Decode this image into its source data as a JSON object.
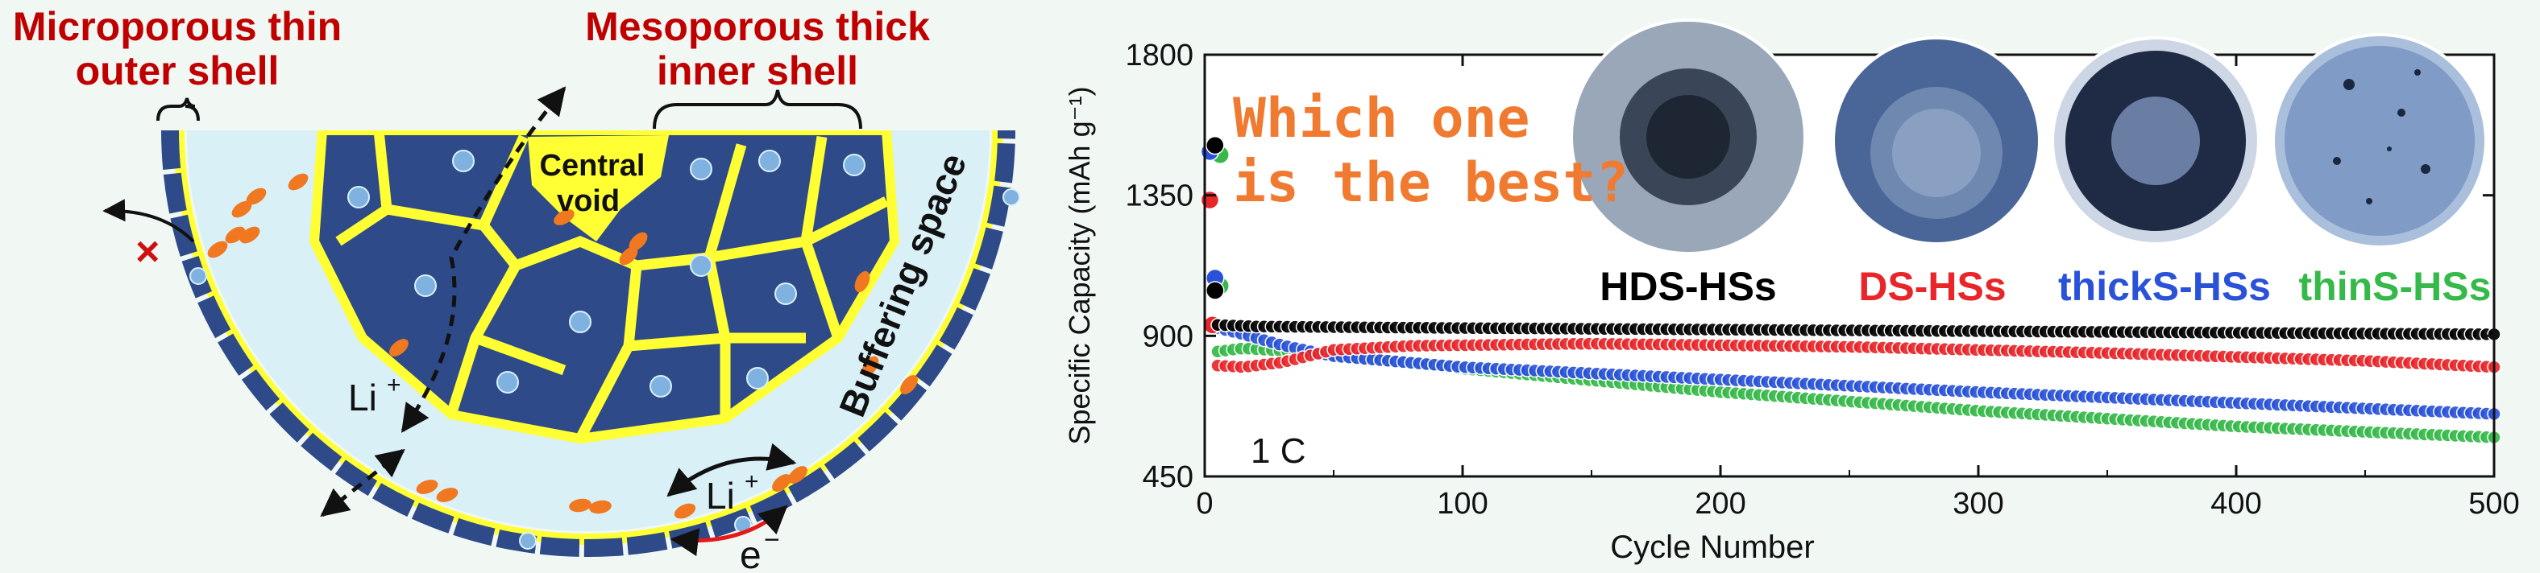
{
  "schematic": {
    "label_outer_shell": [
      "Microporous thin",
      "outer shell"
    ],
    "label_inner_shell": [
      "Mesoporous thick",
      "inner shell"
    ],
    "label_void": [
      "Central",
      "void"
    ],
    "label_buffer": "Buffering space",
    "label_li_left": "Li",
    "label_li_right": "Li",
    "label_plus": "+",
    "label_electron": "e",
    "label_minus": "−",
    "colors": {
      "shell": "#2e4a88",
      "coating": "#ffff33",
      "electrolyte": "#d9f0f7",
      "particle": "#f07820",
      "label": "#c00000"
    }
  },
  "chart_data": {
    "type": "scatter",
    "xlabel": "Cycle Number",
    "ylabel": "Specific Capacity (mAh g⁻¹)",
    "xlim": [
      0,
      500
    ],
    "ylim": [
      450,
      1800
    ],
    "xticks": [
      0,
      100,
      200,
      300,
      400,
      500
    ],
    "yticks": [
      450,
      900,
      1350,
      1800
    ],
    "question": [
      "Which one",
      "is the best?"
    ],
    "rate_label": "1 C",
    "series": [
      {
        "name": "HDS-HSs",
        "color": "#000000",
        "label_color": "#000000",
        "initial": [
          [
            4,
            1510
          ],
          [
            4,
            1045
          ]
        ],
        "points": [
          [
            5,
            935
          ],
          [
            20,
            930
          ],
          [
            50,
            928
          ],
          [
            100,
            925
          ],
          [
            200,
            920
          ],
          [
            300,
            915
          ],
          [
            400,
            910
          ],
          [
            500,
            905
          ]
        ]
      },
      {
        "name": "DS-HSs",
        "color": "#e8262a",
        "label_color": "#e8262a",
        "initial": [
          [
            2,
            1335
          ],
          [
            3,
            935
          ]
        ],
        "points": [
          [
            5,
            805
          ],
          [
            15,
            800
          ],
          [
            30,
            815
          ],
          [
            50,
            855
          ],
          [
            80,
            868
          ],
          [
            150,
            875
          ],
          [
            250,
            865
          ],
          [
            350,
            845
          ],
          [
            450,
            820
          ],
          [
            500,
            800
          ]
        ]
      },
      {
        "name": "thickS-HSs",
        "color": "#2a52d8",
        "label_color": "#2a52d8",
        "initial": [
          [
            2,
            1490
          ],
          [
            4,
            1085
          ]
        ],
        "points": [
          [
            5,
            925
          ],
          [
            15,
            905
          ],
          [
            30,
            870
          ],
          [
            50,
            835
          ],
          [
            100,
            800
          ],
          [
            200,
            760
          ],
          [
            300,
            720
          ],
          [
            400,
            685
          ],
          [
            500,
            650
          ]
        ]
      },
      {
        "name": "thinS-HSs",
        "color": "#36b94a",
        "label_color": "#36b94a",
        "initial": [
          [
            6,
            1480
          ],
          [
            6,
            1060
          ]
        ],
        "points": [
          [
            5,
            850
          ],
          [
            15,
            860
          ],
          [
            30,
            852
          ],
          [
            60,
            830
          ],
          [
            100,
            795
          ],
          [
            200,
            720
          ],
          [
            300,
            660
          ],
          [
            400,
            610
          ],
          [
            500,
            575
          ]
        ]
      }
    ]
  }
}
